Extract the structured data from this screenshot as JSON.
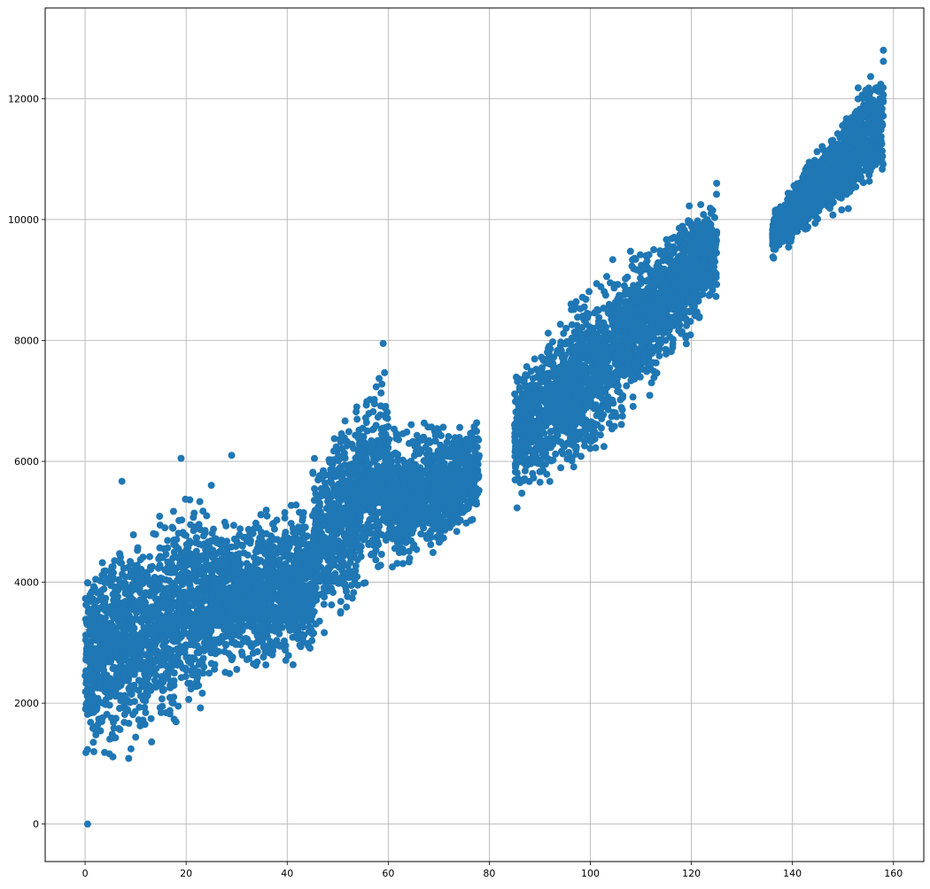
{
  "chart_data": {
    "type": "scatter",
    "title": "",
    "xlabel": "",
    "ylabel": "",
    "xlim": [
      -7.9,
      166
    ],
    "ylim": [
      -620,
      13500
    ],
    "grid": true,
    "marker_color": "#1f77b4",
    "x_ticks": [
      0,
      20,
      40,
      60,
      80,
      100,
      120,
      140,
      160
    ],
    "y_ticks": [
      0,
      2000,
      4000,
      6000,
      8000,
      10000,
      12000
    ],
    "x_tick_labels": [
      "0",
      "20",
      "40",
      "60",
      "80",
      "100",
      "120",
      "140",
      "160"
    ],
    "y_tick_labels": [
      "0",
      "2000",
      "4000",
      "6000",
      "8000",
      "10000",
      "12000"
    ],
    "clusters": [
      {
        "x_range": [
          0,
          25
        ],
        "y_at_start": [
          500,
          4800
        ],
        "y_at_end": [
          1700,
          5900
        ]
      },
      {
        "x_range": [
          25,
          45
        ],
        "y_at_start": [
          2300,
          5200
        ],
        "y_at_end": [
          2400,
          5500
        ]
      },
      {
        "x_range": [
          45,
          60
        ],
        "y_at_start": [
          2800,
          6300
        ],
        "y_at_end": [
          3900,
          7900
        ]
      },
      {
        "x_range": [
          60,
          78
        ],
        "y_at_start": [
          3900,
          6700
        ],
        "y_at_end": [
          4800,
          6900
        ]
      },
      {
        "x_range": [
          85,
          100
        ],
        "y_at_start": [
          5200,
          7700
        ],
        "y_at_end": [
          5700,
          9200
        ]
      },
      {
        "x_range": [
          100,
          125
        ],
        "y_at_start": [
          5700,
          9200
        ],
        "y_at_end": [
          8500,
          10600
        ]
      },
      {
        "x_range": [
          136,
          158
        ],
        "y_at_start": [
          9300,
          10200
        ],
        "y_at_end": [
          10500,
          12800
        ]
      }
    ],
    "outlier_points": [
      {
        "x": 0.5,
        "y": 0
      },
      {
        "x": 7.3,
        "y": 5670
      },
      {
        "x": 85.5,
        "y": 5230
      },
      {
        "x": 158,
        "y": 12800
      },
      {
        "x": 59,
        "y": 7950
      },
      {
        "x": 125,
        "y": 10600
      },
      {
        "x": 19,
        "y": 6050
      },
      {
        "x": 29,
        "y": 6100
      }
    ]
  }
}
